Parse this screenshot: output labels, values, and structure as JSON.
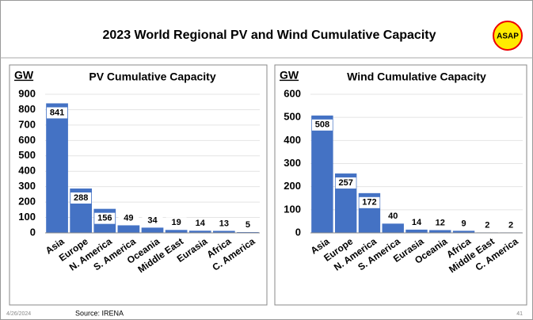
{
  "slide": {
    "title": "2023 World Regional PV and Wind Cumulative Capacity",
    "logo": "ASAP",
    "date": "4/26/2024",
    "source": "Source: IRENA",
    "page": "41"
  },
  "chart_data": [
    {
      "type": "bar",
      "title": "PV Cumulative Capacity",
      "y_axis_label": "GW",
      "categories": [
        "Asia",
        "Europe",
        "N. America",
        "S. America",
        "Oceania",
        "Middle East",
        "Eurasia",
        "Africa",
        "C. America"
      ],
      "values": [
        841,
        288,
        156,
        49,
        34,
        19,
        14,
        13,
        5
      ],
      "color": "#4472c4",
      "ylim": [
        0,
        900
      ],
      "yticks": [
        0,
        100,
        200,
        300,
        400,
        500,
        600,
        700,
        800,
        900
      ],
      "grid": true
    },
    {
      "type": "bar",
      "title": "Wind Cumulative Capacity",
      "y_axis_label": "GW",
      "categories": [
        "Asia",
        "Europe",
        "N. America",
        "S. America",
        "Eurasia",
        "Oceania",
        "Africa",
        "Middle East",
        "C. America"
      ],
      "values": [
        508,
        257,
        172,
        40,
        14,
        12,
        9,
        2,
        2
      ],
      "color": "#4472c4",
      "ylim": [
        0,
        600
      ],
      "yticks": [
        0,
        100,
        200,
        300,
        400,
        500,
        600
      ],
      "grid": true
    }
  ]
}
